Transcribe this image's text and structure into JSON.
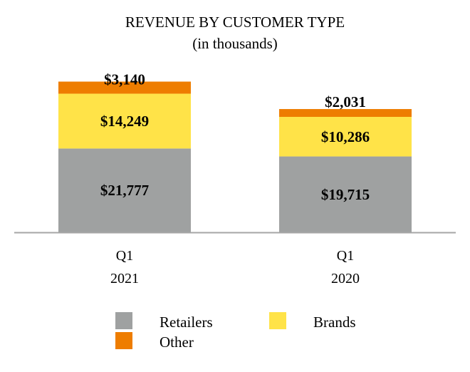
{
  "chart_data": {
    "type": "bar",
    "stacked": true,
    "title": "REVENUE BY CUSTOMER TYPE",
    "subtitle": "(in thousands)",
    "categories": [
      [
        "Q1",
        "2021"
      ],
      [
        "Q1",
        "2020"
      ]
    ],
    "series": [
      {
        "name": "Retailers",
        "values": [
          21777,
          19715
        ],
        "labels": [
          "$21,777",
          "$19,715"
        ],
        "color": "#9fa1a1"
      },
      {
        "name": "Brands",
        "values": [
          14249,
          10286
        ],
        "labels": [
          "$14,249",
          "$10,286"
        ],
        "color": "#ffe348"
      },
      {
        "name": "Other",
        "values": [
          3140,
          2031
        ],
        "labels": [
          "$3,140",
          "$2,031"
        ],
        "color": "#ee7d00"
      }
    ],
    "ylim": [
      0,
      40000
    ],
    "grid": false,
    "legend_placement": "bottom"
  }
}
